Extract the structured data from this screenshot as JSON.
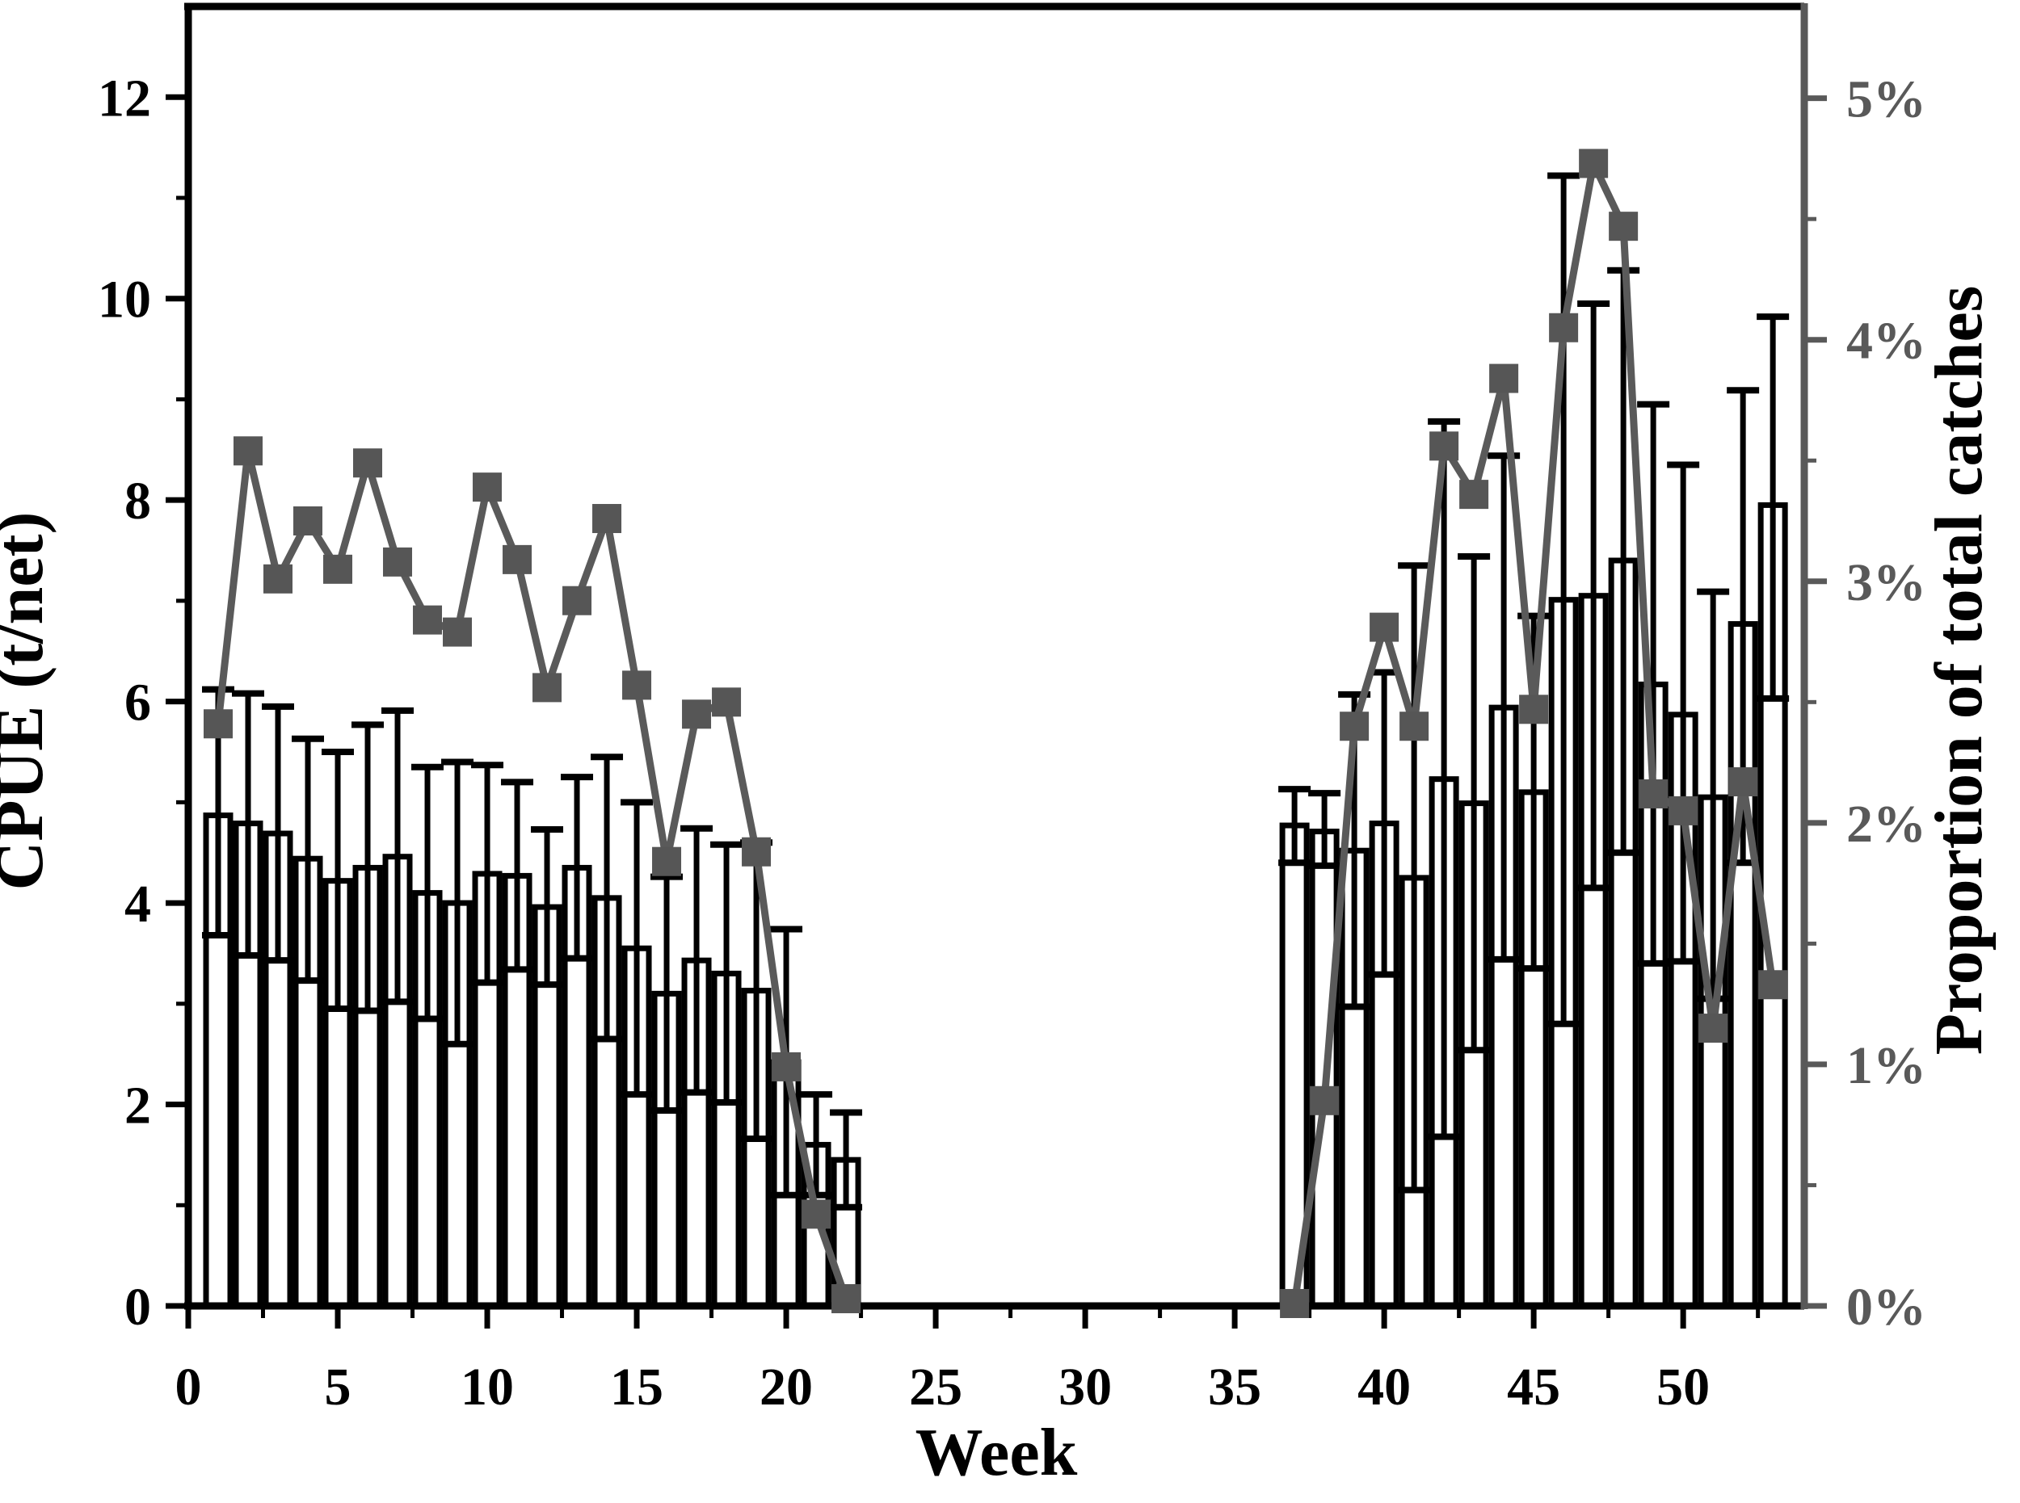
{
  "figure": {
    "background": "#ffffff"
  },
  "chart_data": {
    "type": "bar+line",
    "title": "",
    "xlabel": "Week",
    "ylabel_left": "CPUE (t/net)",
    "ylabel_right": "Proportion of total catches",
    "grid": false,
    "legend_position": "none",
    "x_range": [
      0,
      54.05
    ],
    "x_major_ticks": [
      0,
      5,
      10,
      15,
      20,
      25,
      30,
      35,
      40,
      45,
      50
    ],
    "x_minor_ticks": [
      2.5,
      7.5,
      12.5,
      17.5,
      22.5,
      27.5,
      32.5,
      37.5,
      42.5,
      47.5,
      52.5
    ],
    "y_left_range": [
      0,
      12.9
    ],
    "y_left_major_ticks": [
      0,
      2,
      4,
      6,
      8,
      10,
      12
    ],
    "y_left_minor_ticks": [
      1,
      3,
      5,
      7,
      9,
      11
    ],
    "y_right_range_pct": [
      0,
      5.38
    ],
    "y_right_major_ticks_pct": [
      0,
      1,
      2,
      3,
      4,
      5
    ],
    "y_right_major_tick_labels": [
      "0%",
      "1%",
      "2%",
      "3%",
      "4%",
      "5%"
    ],
    "y_right_minor_ticks_pct": [
      0.5,
      1.5,
      2.5,
      3.5,
      4.5
    ],
    "colors": {
      "bar_fill": "#ffffff",
      "bar_stroke": "#000000",
      "error_stroke": "#000000",
      "line": "#5a5a5a",
      "marker": "#565656",
      "left_axis": "#000000",
      "right_axis": "#595959"
    },
    "bars_series_name": "CPUE (t/net), mean with error bars",
    "bars": [
      {
        "week": 1,
        "cpue": 4.87,
        "err_low": 3.68,
        "err_high": 6.12
      },
      {
        "week": 2,
        "cpue": 4.79,
        "err_low": 3.48,
        "err_high": 6.08
      },
      {
        "week": 3,
        "cpue": 4.69,
        "err_low": 3.43,
        "err_high": 5.95
      },
      {
        "week": 4,
        "cpue": 4.44,
        "err_low": 3.23,
        "err_high": 5.63
      },
      {
        "week": 5,
        "cpue": 4.22,
        "err_low": 2.95,
        "err_high": 5.5
      },
      {
        "week": 6,
        "cpue": 4.35,
        "err_low": 2.93,
        "err_high": 5.77
      },
      {
        "week": 7,
        "cpue": 4.46,
        "err_low": 3.02,
        "err_high": 5.91
      },
      {
        "week": 8,
        "cpue": 4.1,
        "err_low": 2.85,
        "err_high": 5.35
      },
      {
        "week": 9,
        "cpue": 4.0,
        "err_low": 2.6,
        "err_high": 5.4
      },
      {
        "week": 10,
        "cpue": 4.29,
        "err_low": 3.21,
        "err_high": 5.37
      },
      {
        "week": 11,
        "cpue": 4.27,
        "err_low": 3.34,
        "err_high": 5.2
      },
      {
        "week": 12,
        "cpue": 3.96,
        "err_low": 3.19,
        "err_high": 4.73
      },
      {
        "week": 13,
        "cpue": 4.35,
        "err_low": 3.45,
        "err_high": 5.25
      },
      {
        "week": 14,
        "cpue": 4.05,
        "err_low": 2.65,
        "err_high": 5.45
      },
      {
        "week": 15,
        "cpue": 3.55,
        "err_low": 2.1,
        "err_high": 5.0
      },
      {
        "week": 16,
        "cpue": 3.1,
        "err_low": 1.94,
        "err_high": 4.26
      },
      {
        "week": 17,
        "cpue": 3.43,
        "err_low": 2.12,
        "err_high": 4.74
      },
      {
        "week": 18,
        "cpue": 3.3,
        "err_low": 2.02,
        "err_high": 4.58
      },
      {
        "week": 19,
        "cpue": 3.13,
        "err_low": 1.66,
        "err_high": 4.6
      },
      {
        "week": 20,
        "cpue": 2.42,
        "err_low": 1.1,
        "err_high": 3.74
      },
      {
        "week": 21,
        "cpue": 1.6,
        "err_low": 1.1,
        "err_high": 2.1
      },
      {
        "week": 22,
        "cpue": 1.45,
        "err_low": 0.98,
        "err_high": 1.92
      },
      {
        "week": 37,
        "cpue": 4.77,
        "err_low": 4.4,
        "err_high": 5.13
      },
      {
        "week": 38,
        "cpue": 4.71,
        "err_low": 4.37,
        "err_high": 5.09
      },
      {
        "week": 39,
        "cpue": 4.52,
        "err_low": 2.97,
        "err_high": 6.07
      },
      {
        "week": 40,
        "cpue": 4.79,
        "err_low": 3.29,
        "err_high": 6.29
      },
      {
        "week": 41,
        "cpue": 4.25,
        "err_low": 1.15,
        "err_high": 7.35
      },
      {
        "week": 42,
        "cpue": 5.23,
        "err_low": 1.68,
        "err_high": 8.78
      },
      {
        "week": 43,
        "cpue": 4.99,
        "err_low": 2.54,
        "err_high": 7.44
      },
      {
        "week": 44,
        "cpue": 5.94,
        "err_low": 3.44,
        "err_high": 8.44
      },
      {
        "week": 45,
        "cpue": 5.1,
        "err_low": 3.35,
        "err_high": 6.85
      },
      {
        "week": 46,
        "cpue": 7.01,
        "err_low": 2.8,
        "err_high": 11.22
      },
      {
        "week": 47,
        "cpue": 7.05,
        "err_low": 4.15,
        "err_high": 9.95
      },
      {
        "week": 48,
        "cpue": 7.4,
        "err_low": 4.5,
        "err_high": 10.28
      },
      {
        "week": 49,
        "cpue": 6.17,
        "err_low": 3.4,
        "err_high": 8.95
      },
      {
        "week": 50,
        "cpue": 5.87,
        "err_low": 3.42,
        "err_high": 8.35
      },
      {
        "week": 51,
        "cpue": 5.05,
        "err_low": 3.05,
        "err_high": 7.09
      },
      {
        "week": 52,
        "cpue": 6.77,
        "err_low": 4.4,
        "err_high": 9.09
      },
      {
        "week": 53,
        "cpue": 7.95,
        "err_low": 6.03,
        "err_high": 9.82
      }
    ],
    "line_series_name": "Proportion of total catches (%)",
    "line": [
      {
        "week": 1,
        "prop_pct": 2.41
      },
      {
        "week": 2,
        "prop_pct": 3.54
      },
      {
        "week": 3,
        "prop_pct": 3.01
      },
      {
        "week": 4,
        "prop_pct": 3.25
      },
      {
        "week": 5,
        "prop_pct": 3.05
      },
      {
        "week": 6,
        "prop_pct": 3.49
      },
      {
        "week": 7,
        "prop_pct": 3.08
      },
      {
        "week": 8,
        "prop_pct": 2.84
      },
      {
        "week": 9,
        "prop_pct": 2.79
      },
      {
        "week": 10,
        "prop_pct": 3.39
      },
      {
        "week": 11,
        "prop_pct": 3.09
      },
      {
        "week": 12,
        "prop_pct": 2.56
      },
      {
        "week": 13,
        "prop_pct": 2.92
      },
      {
        "week": 14,
        "prop_pct": 3.26
      },
      {
        "week": 15,
        "prop_pct": 2.57
      },
      {
        "week": 16,
        "prop_pct": 1.84
      },
      {
        "week": 17,
        "prop_pct": 2.45
      },
      {
        "week": 18,
        "prop_pct": 2.5
      },
      {
        "week": 19,
        "prop_pct": 1.88
      },
      {
        "week": 20,
        "prop_pct": 0.99
      },
      {
        "week": 21,
        "prop_pct": 0.38
      },
      {
        "week": 22,
        "prop_pct": 0.03
      },
      {
        "week": 37,
        "prop_pct": 0.01
      },
      {
        "week": 38,
        "prop_pct": 0.85
      },
      {
        "week": 39,
        "prop_pct": 2.4
      },
      {
        "week": 40,
        "prop_pct": 2.81
      },
      {
        "week": 41,
        "prop_pct": 2.4
      },
      {
        "week": 42,
        "prop_pct": 3.56
      },
      {
        "week": 43,
        "prop_pct": 3.36
      },
      {
        "week": 44,
        "prop_pct": 3.84
      },
      {
        "week": 45,
        "prop_pct": 2.47
      },
      {
        "week": 46,
        "prop_pct": 4.05
      },
      {
        "week": 47,
        "prop_pct": 4.73
      },
      {
        "week": 48,
        "prop_pct": 4.47
      },
      {
        "week": 49,
        "prop_pct": 2.12
      },
      {
        "week": 50,
        "prop_pct": 2.05
      },
      {
        "week": 51,
        "prop_pct": 1.15
      },
      {
        "week": 52,
        "prop_pct": 2.17
      },
      {
        "week": 53,
        "prop_pct": 1.33
      }
    ]
  }
}
